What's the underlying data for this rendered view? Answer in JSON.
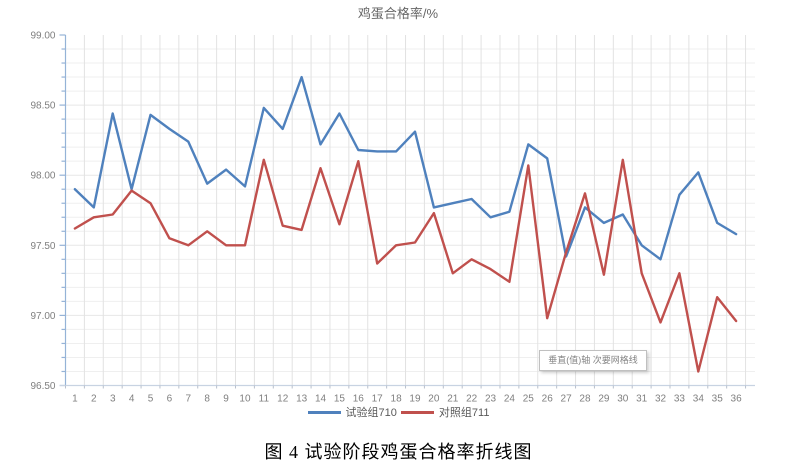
{
  "window": {
    "background": "#ffffff"
  },
  "tooltip": {
    "text": "垂直(值)轴 次要网格线"
  },
  "caption": {
    "text": "图 4 试验阶段鸡蛋合格率折线图"
  },
  "axis_labels": {
    "yticks": [
      "96.50",
      "97.00",
      "97.50",
      "98.00",
      "98.50",
      "99.00"
    ],
    "xticks": [
      "1",
      "2",
      "3",
      "4",
      "5",
      "6",
      "7",
      "8",
      "9",
      "10",
      "11",
      "12",
      "13",
      "14",
      "15",
      "16",
      "17",
      "18",
      "19",
      "20",
      "21",
      "22",
      "23",
      "24",
      "25",
      "26",
      "27",
      "28",
      "29",
      "30",
      "31",
      "32",
      "33",
      "34",
      "35",
      "36"
    ]
  },
  "colors": {
    "series_test": "#4F81BD",
    "series_control": "#C0504D",
    "vertical_grid": "#e2e2e2",
    "horizontal_minor_grid": "#efefef",
    "horizontal_major_grid": "#e7e7e7",
    "y_axis": "#95b3d7",
    "x_axis": "#c8d3e2",
    "x_tick": "#b8c0cd",
    "tick_text": "#7f7f7f",
    "title_text": "#666666",
    "legend_text": "#595959"
  },
  "chart_data": {
    "type": "line",
    "title": "鸡蛋合格率/%",
    "xlabel": "",
    "ylabel": "",
    "x": [
      1,
      2,
      3,
      4,
      5,
      6,
      7,
      8,
      9,
      10,
      11,
      12,
      13,
      14,
      15,
      16,
      17,
      18,
      19,
      20,
      21,
      22,
      23,
      24,
      25,
      26,
      27,
      28,
      29,
      30,
      31,
      32,
      33,
      34,
      35,
      36
    ],
    "series": [
      {
        "name": "试验组710",
        "color": "#4F81BD",
        "values": [
          97.9,
          97.77,
          98.44,
          97.9,
          98.43,
          98.33,
          98.24,
          97.94,
          98.04,
          97.92,
          98.48,
          98.33,
          98.7,
          98.22,
          98.44,
          98.18,
          98.17,
          98.17,
          98.31,
          97.77,
          97.8,
          97.83,
          97.7,
          97.74,
          98.22,
          98.12,
          97.42,
          97.77,
          97.66,
          97.72,
          97.5,
          97.4,
          97.86,
          98.02,
          97.66,
          97.58
        ]
      },
      {
        "name": "对照组711",
        "color": "#C0504D",
        "values": [
          97.62,
          97.7,
          97.72,
          97.89,
          97.8,
          97.55,
          97.5,
          97.6,
          97.5,
          97.5,
          98.11,
          97.64,
          97.61,
          98.05,
          97.65,
          98.1,
          97.37,
          97.5,
          97.52,
          97.73,
          97.3,
          97.4,
          97.33,
          97.24,
          98.07,
          96.98,
          97.45,
          97.87,
          97.29,
          98.11,
          97.3,
          96.95,
          97.3,
          96.6,
          97.13,
          96.96
        ]
      }
    ],
    "ylim": [
      96.5,
      99.0
    ],
    "ytick_major": 0.5,
    "ytick_minor": 0.1,
    "grid": {
      "vertical_per_category": true,
      "horizontal_minor": true
    },
    "legend_position": "bottom"
  }
}
